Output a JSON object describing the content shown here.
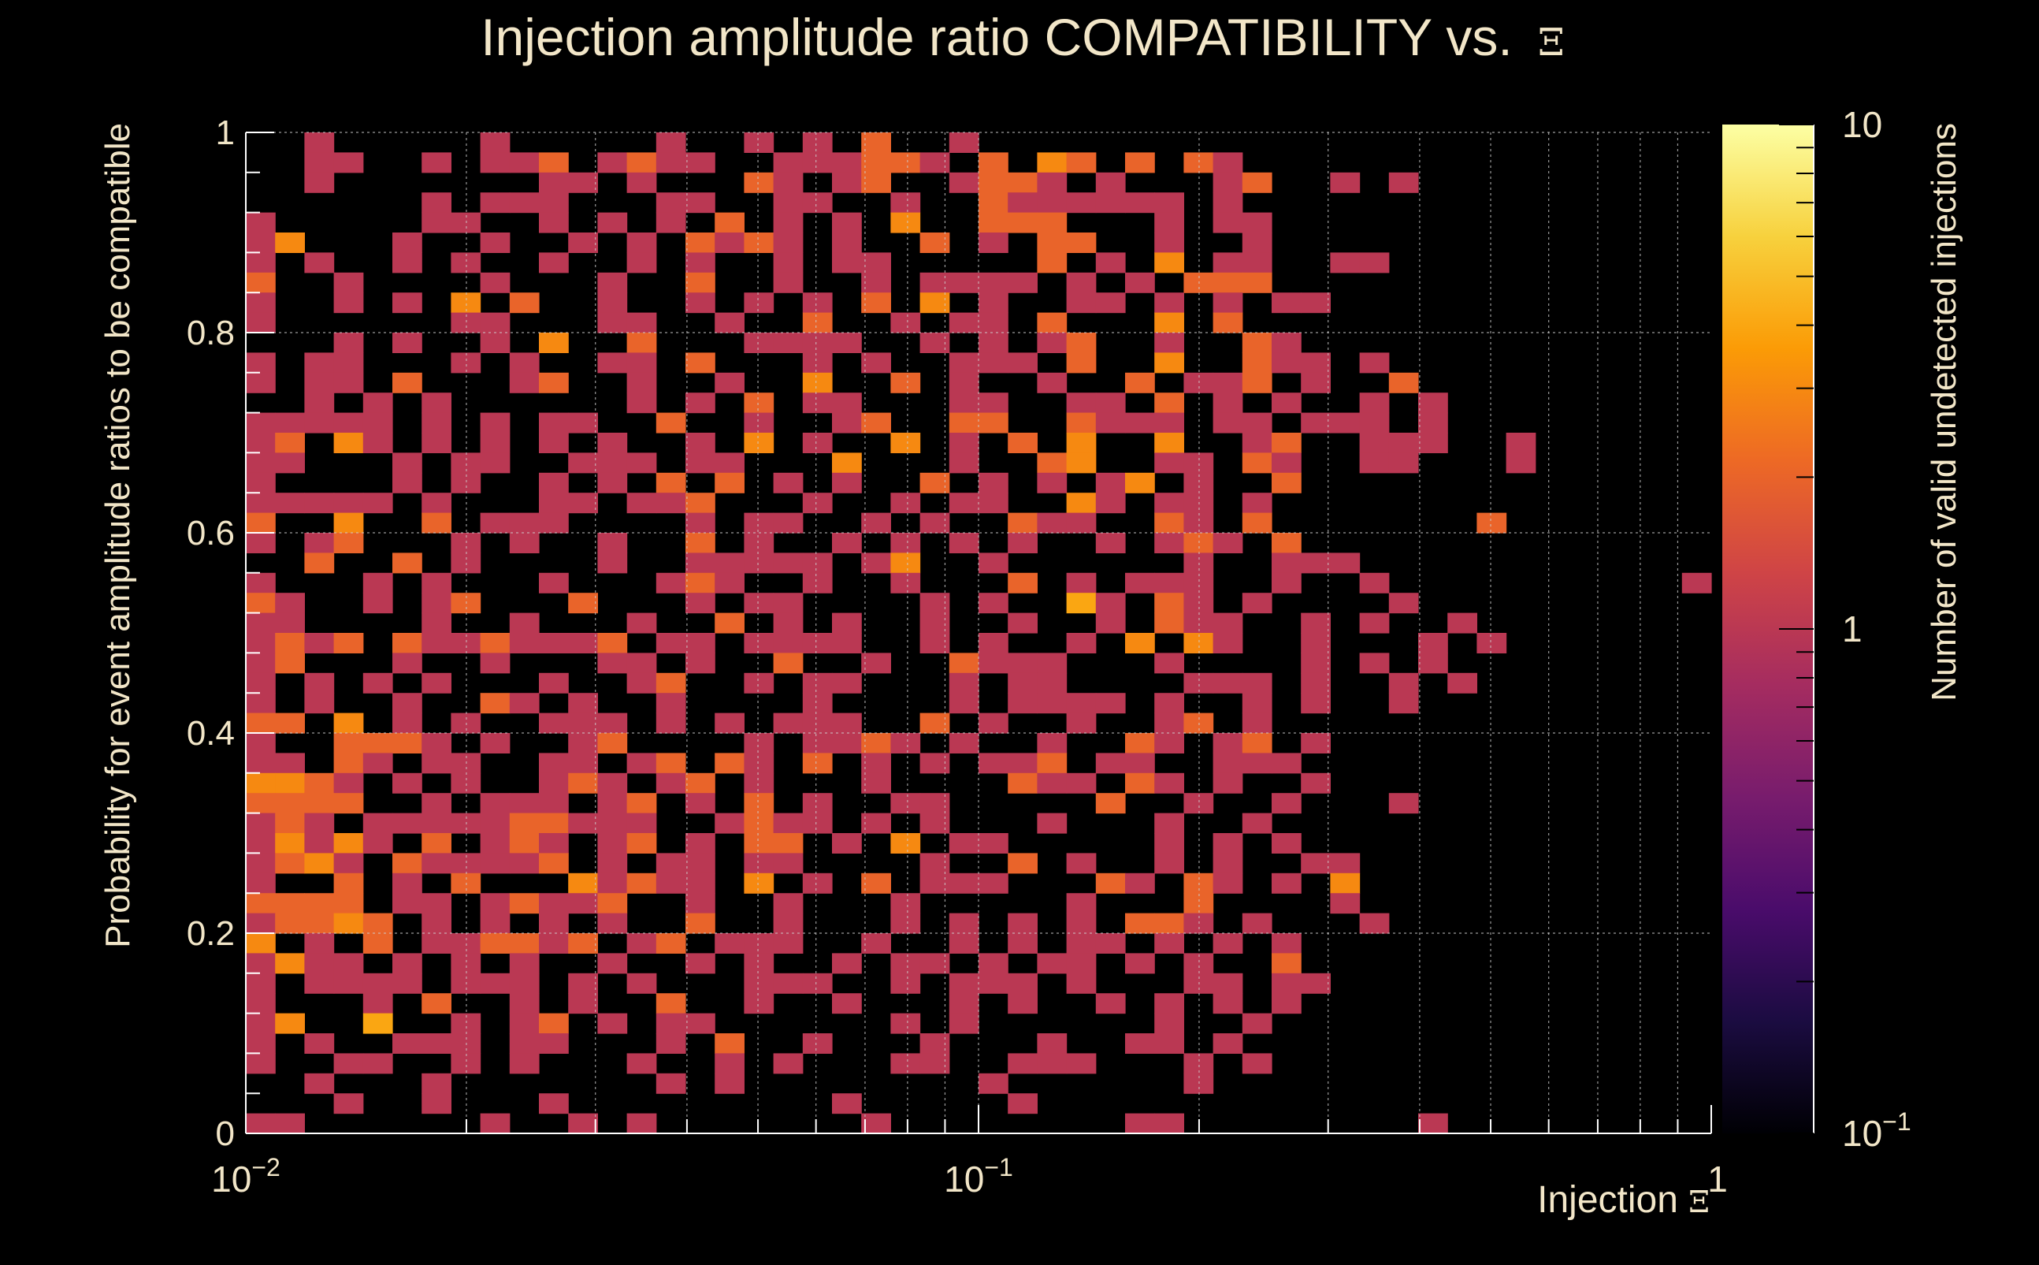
{
  "colors": {
    "background": "#000000",
    "text": "#f2e6c8",
    "axis": "#ffffff",
    "grid": "#cfcfcf",
    "colormap": [
      "#000004",
      "#1b0c41",
      "#4a0c6b",
      "#781c6d",
      "#a52c60",
      "#cf4446",
      "#ed6925",
      "#fb9b06",
      "#f7d13d",
      "#fcffa4"
    ]
  },
  "chart_data": {
    "type": "heatmap",
    "title": "Injection amplitude ratio COMPATIBILITY vs. ",
    "title_symbol": "Ξ",
    "xlabel": "Injection ",
    "xlabel_symbol": "Ξ",
    "ylabel": "Probability for event amplitude ratios to be compatible",
    "zlabel": "Number of valid undetected injections",
    "x_scale": "log",
    "xlim": [
      0.01,
      1
    ],
    "ylim": [
      0,
      1
    ],
    "zlim": [
      0.1,
      10
    ],
    "x_bins": 50,
    "y_bins": 50,
    "x_ticks": [
      {
        "value": 0.01,
        "base": "10",
        "exp": "−2"
      },
      {
        "value": 0.1,
        "base": "10",
        "exp": "−1"
      },
      {
        "value": 1,
        "base": "1",
        "exp": ""
      }
    ],
    "y_ticks": [
      {
        "value": 0,
        "label": "0"
      },
      {
        "value": 0.2,
        "label": "0.2"
      },
      {
        "value": 0.4,
        "label": "0.4"
      },
      {
        "value": 0.6,
        "label": "0.6"
      },
      {
        "value": 0.8,
        "label": "0.8"
      },
      {
        "value": 1,
        "label": "1"
      }
    ],
    "z_ticks": [
      {
        "value": 10,
        "base": "10",
        "exp": ""
      },
      {
        "value": 1,
        "base": "1",
        "exp": ""
      },
      {
        "value": 0.1,
        "base": "10",
        "exp": "−1"
      }
    ],
    "cells_description": "Each row string is one y-bin from top (y≈1) to bottom (y≈0); each character is one log-spaced x-bin from x=0.01 to x=1. Digit = count of valid undetected injections; '.' = empty bin.",
    "rows": [
      "..1.....1.....1..1.1.2..1.........................",
      "..11..1.112.1211..111221.2.32.2.21................",
      "..1.......11.1...21.12..1221.1...12..1.1..........",
      "......1.111...11..11..1..2111111.1................",
      "1.....11..1.1.1.2.1.1.3..222...1.11...............",
      "13...1..1..1.1.2121.1..2.1.22..1..1...............",
      "1.1..1.1..1..1.1..1.11.....2.1.3.11..11...........",
      "2..1....1...1..2..1..1.1111.1.1.222...............",
      "1..1.1.3.2..1..1.1.1.2.3.1..11.1.1.11.............",
      "1......11...11..1..2..1.11.2...3.2................",
      "...1.1..1.3..2...1111..1.1.12..1..21..............",
      "1.11...1.1..11.2...1.1..111.2..3..211.1...........",
      "1.11.2...12..1..1..3..2.1..1..2.112.1..2..........",
      "..1.1.1......1.1.2.11...11..11.2.1.1..1.1.........",
      "11111.1.1.11..2..1..12..22..2111.11.111.1.........",
      "12.31.1.1.1.1..1.3.1..3.1.2.3..3..12..111..1......",
      "11...1.11..111.11...3...1..23..11.21..11...1......",
      "1....1.1..1.1.2.2.1.1..2.1.1.13.1..2..............",
      "11111.1...11.112...1..1.11..31.11.1...............",
      "2..3..2.111....1.11..1.1..211..21.2.......2.......",
      "1.12...1.1..1..2.1..1.1.1.1..1.121.2..............",
      "..2..2.1....1..11111.13..1......1..111............",
      "1...1.1...1...121..1..1...2.1.111..1..1..........1",
      "21..1.12...2...1.11....1.1..41.21.1....1..........",
      "11....1..1...1..2.1.1..1..1..1.211..1.1..1........",
      "1212.21121112.11.1111..1.1..1.3.31..1...1.1.......",
      "12...1..1...11.1..2..1..2111...1....1.1.1.........",
      "1.1.1.1...1..12..1.11...1.11....111.1..1.1........",
      "1.1..1..21.1..1....1....1.1111.1..1.1..1..........",
      "22.3.1.1..111.1.1.111..2.1..1..12.1...............",
      "1..2221.1..12....1.1121.1..1..21.12.1.............",
      "11.21.11..11.12.21.2.1.1.112.11..111..............",
      "3321.1.1..121.12.1...1....211.21.1..1.............",
      "2222..1.111.12.1.2.1..11.....2..1..1...1..........",
      "121.1111122111..1211.1.1...1...1..1...............",
      "13131.2.121.12.1.22.1.3.11.....1.1.1..............",
      "1231.211112.1.11.11....1..2.1..1.1..11............",
      "1..2.1.2...31211.3.1.2.111...21.21.1.3............",
      "2222.11.12112..1..1...1.....1...2....1............",
      "12232.1.1.1.1..2..1...1.1.1.1.221.1...1...........",
      "3.1.2.112212.12.111..1..1.1.11.1.1.1..............",
      "1311.1.1.1..1..1.1..1.11.1.11.1.1..2..............",
      "1.1111.111.1.1...111..1.111.1...11.11.............",
      "1...1.2..1.1..2..1..1...1.1..1.1.1.1..............",
      "13..4..1.12.1.11......1.1......1..1...............",
      "1.1..111.11...1.2..1...1...1..11.1................",
      "1..11..1.1...1..1.1...11..111...1.1...............",
      "..1...1.......1.1........1......1.................",
      "...1..1...1.........1.....1.......................",
      "11......1..1.1.......1........11........1........."
    ]
  }
}
